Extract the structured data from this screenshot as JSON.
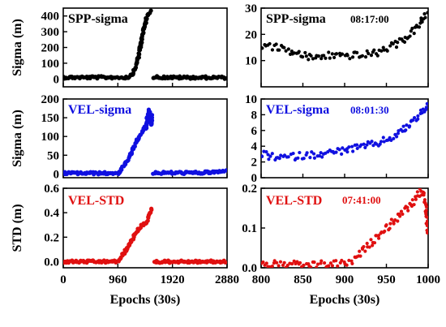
{
  "chart_data": [
    {
      "type": "scatter",
      "panel": "left-top",
      "title": "SPP-sigma",
      "ylabel": "Sigma (m)",
      "xlim": [
        0,
        2880
      ],
      "ylim": [
        -50,
        450
      ],
      "yticks": [
        0,
        100,
        200,
        300,
        400
      ],
      "yticklabels": [
        "0",
        "100",
        "200",
        "300",
        "400"
      ],
      "xticks": [
        0,
        960,
        1920,
        2880
      ],
      "marker_color": "#000000",
      "segments": [
        {
          "x": [
            0,
            300,
            600,
            900,
            1100,
            1150
          ],
          "y": [
            10,
            10,
            10,
            10,
            10,
            12
          ]
        },
        {
          "x": [
            1150,
            1200,
            1250,
            1300,
            1350,
            1400,
            1450,
            1500,
            1550
          ],
          "y": [
            12,
            25,
            55,
            110,
            190,
            290,
            370,
            420,
            440
          ]
        },
        {
          "x": [
            1580,
            1800,
            2100,
            2400,
            2700,
            2880
          ],
          "y": [
            12,
            10,
            9,
            9,
            9,
            8
          ]
        }
      ]
    },
    {
      "type": "scatter",
      "panel": "left-middle",
      "title": "VEL-sigma",
      "ylabel": "Sigma (m)",
      "xlim": [
        0,
        2880
      ],
      "ylim": [
        -10,
        200
      ],
      "yticks": [
        0,
        50,
        100,
        150,
        200
      ],
      "yticklabels": [
        "0",
        "50",
        "100",
        "150",
        "200"
      ],
      "xticks": [
        0,
        960,
        1920,
        2880
      ],
      "marker_color": "#1010e0",
      "segments": [
        {
          "x": [
            0,
            300,
            600,
            900,
            960,
            1000
          ],
          "y": [
            2,
            2,
            2,
            2,
            3,
            5
          ]
        },
        {
          "x": [
            1000,
            1080,
            1160,
            1240,
            1320,
            1400,
            1450,
            1500
          ],
          "y": [
            5,
            25,
            45,
            70,
            95,
            115,
            130,
            145
          ]
        },
        {
          "x": [
            1450,
            1480,
            1510,
            1540,
            1560
          ],
          "y": [
            120,
            150,
            170,
            130,
            160
          ]
        },
        {
          "x": [
            1580,
            1800,
            2100,
            2400,
            2700,
            2880
          ],
          "y": [
            3,
            3,
            3,
            3,
            5,
            8
          ]
        }
      ]
    },
    {
      "type": "scatter",
      "panel": "left-bottom",
      "title": "VEL-STD",
      "ylabel": "STD (m)",
      "xlabel": "Epochs (30s)",
      "xlim": [
        0,
        2880
      ],
      "ylim": [
        -0.05,
        0.6
      ],
      "yticks": [
        0.0,
        0.2,
        0.4,
        0.6
      ],
      "yticklabels": [
        "0.0",
        "0.2",
        "0.4",
        "0.6"
      ],
      "xticks": [
        0,
        960,
        1920,
        2880
      ],
      "xticklabels": [
        "0",
        "960",
        "1920",
        "2880"
      ],
      "marker_color": "#e01010",
      "segments": [
        {
          "x": [
            0,
            300,
            600,
            900,
            1000
          ],
          "y": [
            0.0,
            0.0,
            0.0,
            0.0,
            0.01
          ]
        },
        {
          "x": [
            1000,
            1080,
            1160,
            1240,
            1320,
            1400,
            1480,
            1520,
            1560
          ],
          "y": [
            0.02,
            0.08,
            0.14,
            0.2,
            0.26,
            0.3,
            0.34,
            0.4,
            0.44
          ]
        },
        {
          "x": [
            1600,
            1900,
            2200,
            2500,
            2880
          ],
          "y": [
            0.0,
            0.0,
            0.0,
            0.0,
            0.0
          ]
        }
      ]
    },
    {
      "type": "scatter",
      "panel": "right-top",
      "title": "SPP-sigma",
      "time_label": "08:17:00",
      "xlim": [
        800,
        1000
      ],
      "ylim": [
        0,
        30
      ],
      "yticks": [
        10,
        20,
        30
      ],
      "yticklabels": [
        "10",
        "20",
        "30"
      ],
      "xticks": [
        800,
        850,
        900,
        950,
        1000
      ],
      "marker_color": "#000000",
      "x": [
        800,
        820,
        840,
        860,
        880,
        900,
        920,
        940,
        960,
        975,
        990,
        1000
      ],
      "y": [
        16,
        15,
        13,
        11,
        12,
        12,
        12,
        13,
        16,
        19,
        24,
        28
      ]
    },
    {
      "type": "scatter",
      "panel": "right-middle",
      "title": "VEL-sigma",
      "time_label": "08:01:30",
      "xlim": [
        800,
        1000
      ],
      "ylim": [
        0,
        10
      ],
      "yticks": [
        0,
        2,
        4,
        6,
        8,
        10
      ],
      "yticklabels": [
        "0",
        "2",
        "4",
        "6",
        "8",
        "10"
      ],
      "xticks": [
        800,
        850,
        900,
        950,
        1000
      ],
      "marker_color": "#1010e0",
      "x": [
        800,
        820,
        840,
        860,
        880,
        900,
        920,
        940,
        960,
        975,
        990,
        1000
      ],
      "y": [
        3,
        2.5,
        2.7,
        2.9,
        3.1,
        3.5,
        3.9,
        4.4,
        5.3,
        6.5,
        8,
        9.5
      ]
    },
    {
      "type": "scatter",
      "panel": "right-bottom",
      "title": "VEL-STD",
      "time_label": "07:41:00",
      "xlabel": "Epochs (30s)",
      "xlim": [
        800,
        1000
      ],
      "ylim": [
        0,
        0.2
      ],
      "yticks": [
        0.0,
        0.1,
        0.2
      ],
      "yticklabels": [
        "0.0",
        "0.1",
        "0.2"
      ],
      "xticks": [
        800,
        850,
        900,
        950,
        1000
      ],
      "xticklabels": [
        "800",
        "850",
        "900",
        "950",
        "1000"
      ],
      "marker_color": "#e01010",
      "x": [
        800,
        830,
        860,
        890,
        910,
        925,
        940,
        955,
        970,
        985,
        990,
        995,
        1000
      ],
      "y": [
        0.01,
        0.008,
        0.007,
        0.01,
        0.015,
        0.05,
        0.08,
        0.11,
        0.14,
        0.17,
        0.19,
        0.19,
        0.08
      ]
    }
  ]
}
